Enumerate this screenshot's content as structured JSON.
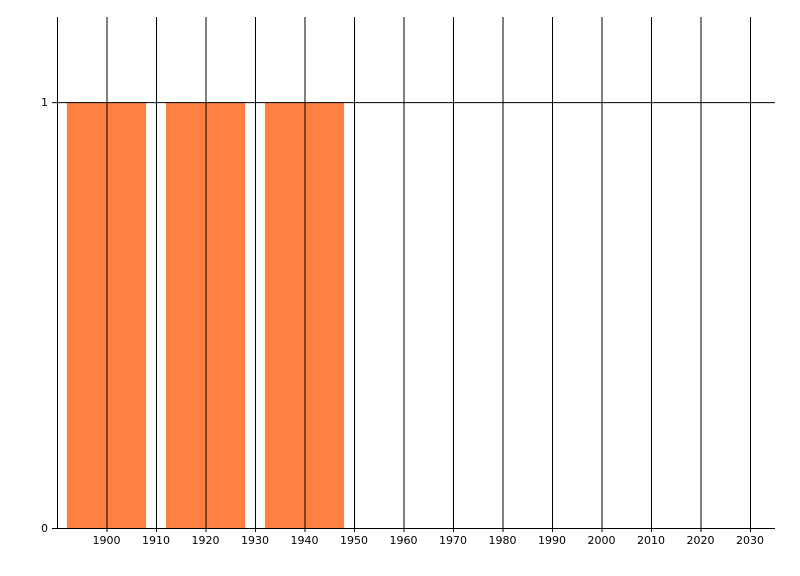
{
  "chart_data": {
    "type": "bar",
    "title": "",
    "xlabel": "",
    "ylabel": "",
    "x": [
      1900,
      1920,
      1940
    ],
    "values": [
      1,
      1,
      1
    ],
    "bar_width_years": 16,
    "xlim": [
      1890,
      2035
    ],
    "ylim": [
      0,
      1.2
    ],
    "x_ticks": [
      1900,
      1910,
      1920,
      1930,
      1940,
      1950,
      1960,
      1970,
      1980,
      1990,
      2000,
      2010,
      2020,
      2030
    ],
    "y_ticks": [
      0,
      1
    ],
    "grid": "vertical lines every 10 years, horizontal at 1",
    "bar_color": "#FF8040",
    "legend": "none"
  }
}
